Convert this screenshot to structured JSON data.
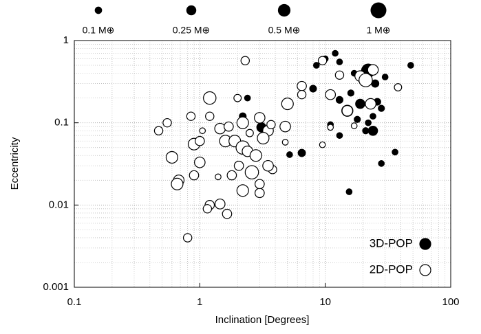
{
  "chart_data": {
    "type": "scatter",
    "xlabel": "Inclination [Degrees]",
    "ylabel": "Eccentricity",
    "xscale": "log",
    "yscale": "log",
    "grid": true,
    "legend": "lower right",
    "xlim": [
      0.1,
      100
    ],
    "ylim": [
      0.001,
      1
    ],
    "xticks": [
      0.1,
      1,
      10,
      100
    ],
    "yticks": [
      0.001,
      0.01,
      0.1,
      1
    ],
    "size_legend": [
      {
        "value": 0.1,
        "label": "0.1 M⊕"
      },
      {
        "value": 0.25,
        "label": "0.25 M⊕"
      },
      {
        "value": 0.5,
        "label": "0.5 M⊕"
      },
      {
        "value": 1,
        "label": "1 M⊕"
      }
    ],
    "series": [
      {
        "name": "3D-POP",
        "color": "#000000",
        "x": [
          12,
          8.5,
          13,
          22,
          20,
          25,
          48,
          8,
          13,
          15,
          16,
          18,
          21,
          24,
          19,
          28,
          24,
          13,
          11,
          36,
          28,
          15.5,
          6.5,
          5.2,
          3.1,
          2.2,
          2.4,
          30,
          17,
          10,
          26,
          22
        ],
        "values": [
          0.7,
          0.5,
          0.55,
          0.43,
          0.35,
          0.3,
          0.5,
          0.26,
          0.19,
          0.14,
          0.23,
          0.11,
          0.08,
          0.08,
          0.17,
          0.15,
          0.12,
          0.07,
          0.095,
          0.044,
          0.032,
          0.0145,
          0.043,
          0.041,
          0.088,
          0.12,
          0.2,
          0.36,
          0.4,
          0.6,
          0.18,
          0.1
        ],
        "sizes": [
          0.05,
          0.05,
          0.05,
          0.6,
          0.3,
          0.1,
          0.05,
          0.08,
          0.08,
          0.35,
          0.06,
          0.06,
          0.06,
          0.2,
          0.2,
          0.06,
          0.05,
          0.05,
          0.05,
          0.05,
          0.05,
          0.05,
          0.1,
          0.05,
          0.2,
          0.08,
          0.05,
          0.05,
          0.05,
          0.05,
          0.08,
          0.05
        ]
      },
      {
        "name": "2D-POP",
        "color": "#ffffff",
        "x": [
          2.3,
          9.5,
          13,
          19,
          24,
          21,
          23,
          11,
          38,
          6.5,
          6.5,
          5,
          1.2,
          0.55,
          0.47,
          0.85,
          1.05,
          0.9,
          1,
          0.6,
          1,
          0.68,
          0.66,
          0.9,
          1.2,
          1.15,
          1.45,
          1.65,
          0.8,
          1.4,
          1.45,
          1.6,
          1.9,
          2.2,
          2.4,
          2.8,
          2.2,
          3,
          2.6,
          2.2,
          3,
          3,
          1.8,
          2.05,
          3.5,
          3.2,
          3.7,
          3.8,
          4.8,
          4.8,
          9.5,
          11,
          17,
          15,
          1.2,
          2,
          1.7,
          3.5,
          2.5
        ],
        "values": [
          0.57,
          0.57,
          0.38,
          0.37,
          0.44,
          0.33,
          0.17,
          0.22,
          0.27,
          0.28,
          0.22,
          0.17,
          0.2,
          0.1,
          0.08,
          0.12,
          0.08,
          0.055,
          0.06,
          0.038,
          0.033,
          0.02,
          0.018,
          0.023,
          0.01,
          0.009,
          0.0103,
          0.0078,
          0.004,
          0.022,
          0.085,
          0.06,
          0.06,
          0.05,
          0.045,
          0.04,
          0.1,
          0.115,
          0.025,
          0.015,
          0.014,
          0.018,
          0.023,
          0.03,
          0.08,
          0.065,
          0.095,
          0.027,
          0.09,
          0.058,
          0.054,
          0.088,
          0.092,
          0.14,
          0.12,
          0.2,
          0.09,
          0.03,
          0.075
        ],
        "sizes": [
          0.15,
          0.15,
          0.15,
          0.3,
          0.3,
          0.6,
          0.3,
          0.25,
          0.1,
          0.2,
          0.15,
          0.4,
          0.5,
          0.15,
          0.15,
          0.15,
          0.05,
          0.4,
          0.2,
          0.4,
          0.3,
          0.3,
          0.4,
          0.2,
          0.2,
          0.15,
          0.25,
          0.2,
          0.15,
          0.05,
          0.3,
          0.4,
          0.4,
          0.6,
          0.3,
          0.4,
          0.4,
          0.3,
          0.6,
          0.4,
          0.2,
          0.2,
          0.2,
          0.2,
          0.3,
          0.4,
          0.15,
          0.15,
          0.3,
          0.05,
          0.05,
          0.05,
          0.05,
          0.3,
          0.15,
          0.1,
          0.2,
          0.3,
          0.1
        ]
      }
    ]
  }
}
